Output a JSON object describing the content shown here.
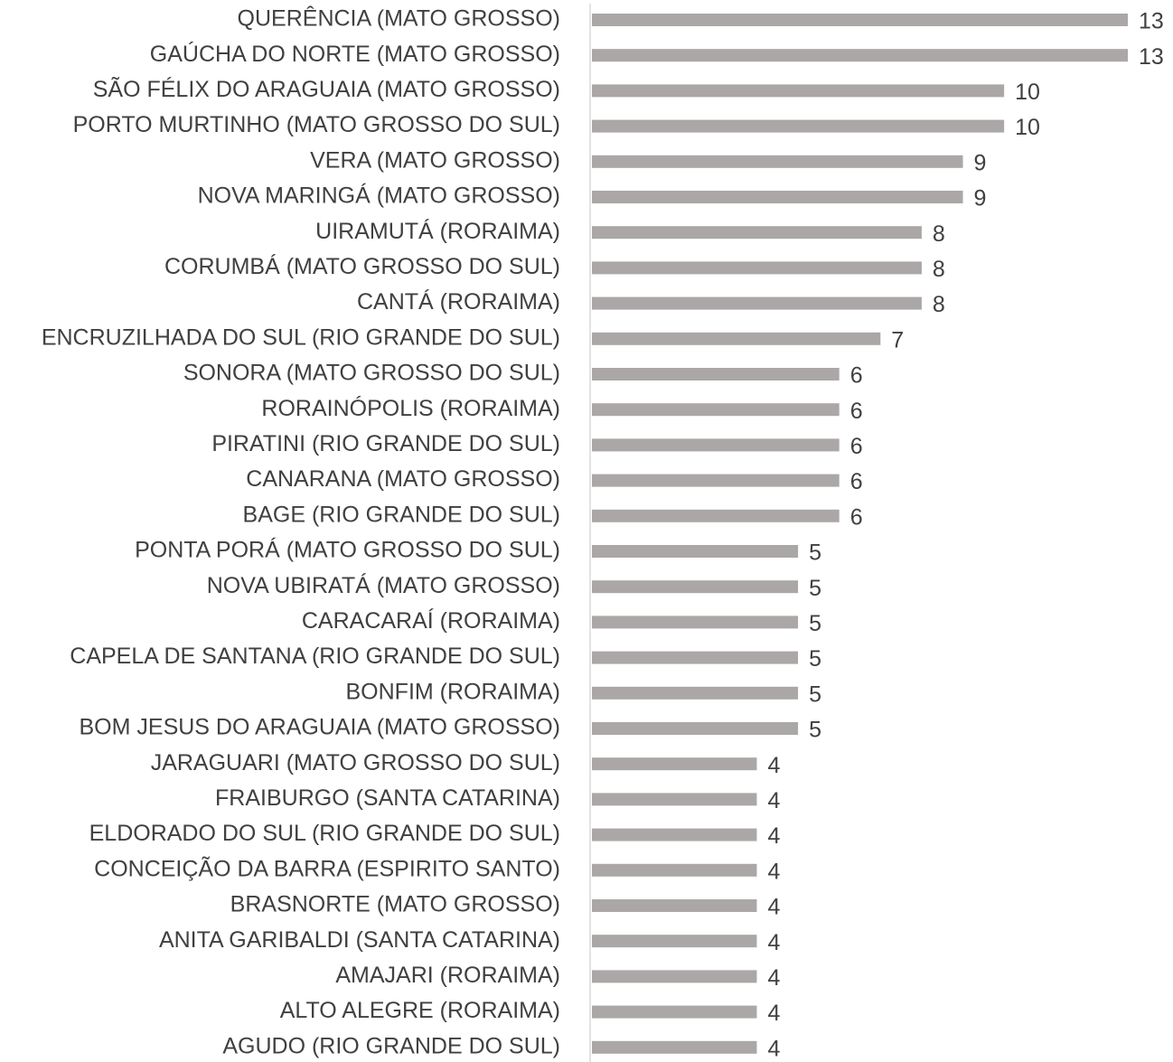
{
  "chart_data": {
    "type": "bar",
    "orientation": "horizontal",
    "categories": [
      "QUERÊNCIA (MATO GROSSO)",
      "GAÚCHA DO NORTE (MATO GROSSO)",
      "SÃO FÉLIX DO ARAGUAIA (MATO GROSSO)",
      "PORTO MURTINHO (MATO GROSSO DO SUL)",
      "VERA (MATO GROSSO)",
      "NOVA MARINGÁ (MATO GROSSO)",
      "UIRAMUTÁ (RORAIMA)",
      "CORUMBÁ (MATO GROSSO DO SUL)",
      "CANTÁ (RORAIMA)",
      "ENCRUZILHADA DO SUL (RIO GRANDE DO SUL)",
      "SONORA (MATO GROSSO DO SUL)",
      "RORAINÓPOLIS (RORAIMA)",
      "PIRATINI (RIO GRANDE DO SUL)",
      "CANARANA (MATO GROSSO)",
      "BAGE (RIO GRANDE DO SUL)",
      "PONTA PORÁ (MATO GROSSO DO SUL)",
      "NOVA UBIRATÁ (MATO GROSSO)",
      "CARACARAÍ (RORAIMA)",
      "CAPELA DE SANTANA (RIO GRANDE DO SUL)",
      "BONFIM (RORAIMA)",
      "BOM JESUS DO ARAGUAIA (MATO GROSSO)",
      "JARAGUARI (MATO GROSSO DO SUL)",
      "FRAIBURGO (SANTA CATARINA)",
      "ELDORADO DO SUL (RIO GRANDE DO SUL)",
      "CONCEIÇÃO DA BARRA (ESPIRITO SANTO)",
      "BRASNORTE (MATO GROSSO)",
      "ANITA GARIBALDI (SANTA CATARINA)",
      "AMAJARI (RORAIMA)",
      "ALTO ALEGRE (RORAIMA)",
      "AGUDO (RIO GRANDE DO SUL)"
    ],
    "values": [
      13,
      13,
      10,
      10,
      9,
      9,
      8,
      8,
      8,
      7,
      6,
      6,
      6,
      6,
      6,
      5,
      5,
      5,
      5,
      5,
      5,
      4,
      4,
      4,
      4,
      4,
      4,
      4,
      4,
      4
    ],
    "color": "#aba7a7",
    "xlim": [
      0,
      13
    ]
  }
}
